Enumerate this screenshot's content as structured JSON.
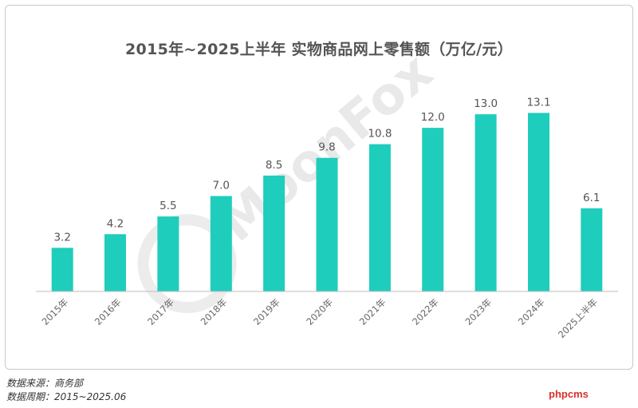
{
  "chart_data": {
    "type": "bar",
    "title": "2015年~2025上半年 实物商品网上零售额（万亿/元）",
    "categories": [
      "2015年",
      "2016年",
      "2017年",
      "2018年",
      "2019年",
      "2020年",
      "2021年",
      "2022年",
      "2023年",
      "2024年",
      "2025上半年"
    ],
    "values": [
      3.2,
      4.2,
      5.5,
      7.0,
      8.5,
      9.8,
      10.8,
      12.0,
      13.0,
      13.1,
      6.1
    ],
    "value_labels": [
      "3.2",
      "4.2",
      "5.5",
      "7.0",
      "8.5",
      "9.8",
      "10.8",
      "12.0",
      "13.0",
      "13.1",
      "6.1"
    ],
    "ylim": [
      0,
      14
    ],
    "grid": false,
    "bar_color": "#1fcdbc"
  },
  "footer": {
    "source": "数据来源：商务部",
    "period": "数据周期：2015~2025.06",
    "site": "phpcms"
  },
  "watermark": {
    "text": "MoonFox"
  }
}
